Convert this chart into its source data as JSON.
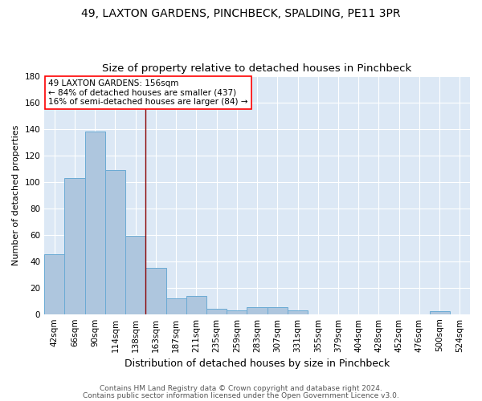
{
  "title": "49, LAXTON GARDENS, PINCHBECK, SPALDING, PE11 3PR",
  "subtitle": "Size of property relative to detached houses in Pinchbeck",
  "xlabel": "Distribution of detached houses by size in Pinchbeck",
  "ylabel": "Number of detached properties",
  "bar_labels": [
    "42sqm",
    "66sqm",
    "90sqm",
    "114sqm",
    "138sqm",
    "163sqm",
    "187sqm",
    "211sqm",
    "235sqm",
    "259sqm",
    "283sqm",
    "307sqm",
    "331sqm",
    "355sqm",
    "379sqm",
    "404sqm",
    "428sqm",
    "452sqm",
    "476sqm",
    "500sqm",
    "524sqm"
  ],
  "bar_values": [
    45,
    103,
    138,
    109,
    59,
    35,
    12,
    14,
    4,
    3,
    5,
    5,
    3,
    0,
    0,
    0,
    0,
    0,
    0,
    2,
    0
  ],
  "bar_color": "#aec6de",
  "bar_edge_color": "#6aaad4",
  "background_color": "#dce8f5",
  "grid_color": "#ffffff",
  "red_line_index": 4.5,
  "annotation_line1": "49 LAXTON GARDENS: 156sqm",
  "annotation_line2": "← 84% of detached houses are smaller (437)",
  "annotation_line3": "16% of semi-detached houses are larger (84) →",
  "footer_line1": "Contains HM Land Registry data © Crown copyright and database right 2024.",
  "footer_line2": "Contains public sector information licensed under the Open Government Licence v3.0.",
  "ylim": [
    0,
    180
  ],
  "yticks": [
    0,
    20,
    40,
    60,
    80,
    100,
    120,
    140,
    160,
    180
  ],
  "title_fontsize": 10,
  "subtitle_fontsize": 9.5,
  "xlabel_fontsize": 9,
  "ylabel_fontsize": 8,
  "tick_fontsize": 7.5,
  "annotation_fontsize": 7.5,
  "footer_fontsize": 6.5
}
